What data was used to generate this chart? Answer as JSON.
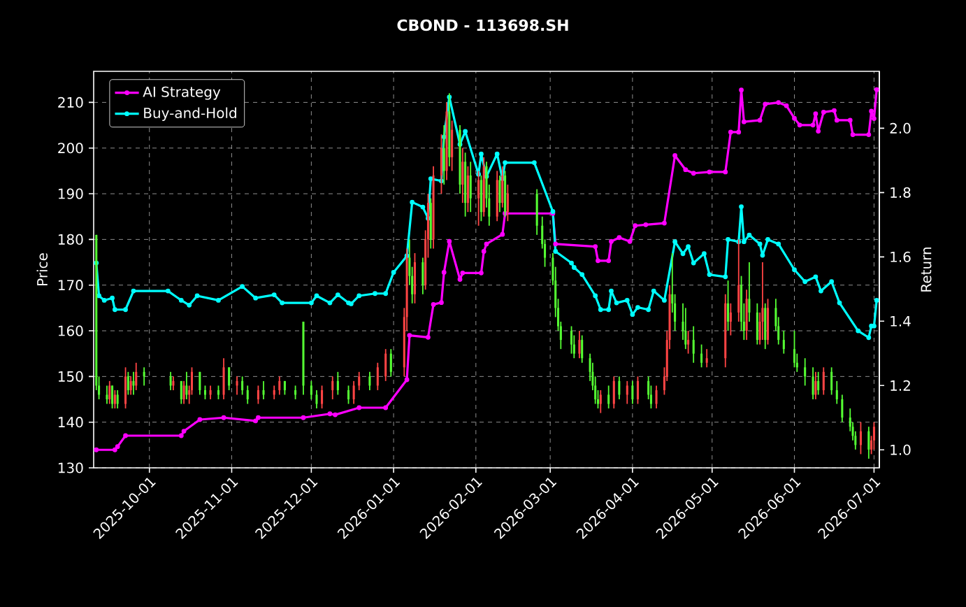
{
  "chart_data": {
    "type": "candlestick",
    "title": "CBOND - 113698.SH",
    "ylabel": "Price",
    "y2label": "Return",
    "xlim": [
      "2025-09-10",
      "2026-07-03"
    ],
    "xticks": [
      "2025-10-01",
      "2025-11-01",
      "2025-12-01",
      "2026-01-01",
      "2026-02-01",
      "2026-03-01",
      "2026-04-01",
      "2026-05-01",
      "2026-06-01",
      "2026-07-01"
    ],
    "ylim": [
      130,
      216.8
    ],
    "yticks": [
      130,
      140,
      150,
      160,
      170,
      180,
      190,
      200,
      210
    ],
    "y2lim": [
      0.944,
      2.177
    ],
    "y2ticks": [
      {
        "value": 1.0,
        "label": "1.0"
      },
      {
        "value": 1.2,
        "label": "1.2"
      },
      {
        "value": 1.4,
        "label": "1.4"
      },
      {
        "value": 1.6,
        "label": "1.6"
      },
      {
        "value": 1.8,
        "label": "1.8"
      },
      {
        "value": 2.0,
        "label": "2.0"
      }
    ],
    "grid": true,
    "legend": "top left",
    "x": [
      "2025-09-11",
      "2025-09-12",
      "2025-09-15",
      "2025-09-16",
      "2025-09-17",
      "2025-09-18",
      "2025-09-19",
      "2025-09-22",
      "2025-09-23",
      "2025-09-24",
      "2025-09-25",
      "2025-09-26",
      "2025-09-29",
      "2025-10-09",
      "2025-10-10",
      "2025-10-13",
      "2025-10-14",
      "2025-10-15",
      "2025-10-16",
      "2025-10-17",
      "2025-10-20",
      "2025-10-22",
      "2025-10-24",
      "2025-10-27",
      "2025-10-29",
      "2025-10-31",
      "2025-11-03",
      "2025-11-05",
      "2025-11-07",
      "2025-11-11",
      "2025-11-13",
      "2025-11-17",
      "2025-11-19",
      "2025-11-21",
      "2025-11-25",
      "2025-11-28",
      "2025-12-01",
      "2025-12-03",
      "2025-12-05",
      "2025-12-09",
      "2025-12-11",
      "2025-12-15",
      "2025-12-17",
      "2025-12-19",
      "2025-12-23",
      "2025-12-26",
      "2025-12-29",
      "2025-12-31",
      "2026-01-05",
      "2026-01-06",
      "2026-01-07",
      "2026-01-08",
      "2026-01-09",
      "2026-01-12",
      "2026-01-13",
      "2026-01-14",
      "2026-01-15",
      "2026-01-16",
      "2026-01-19",
      "2026-01-20",
      "2026-01-21",
      "2026-01-22",
      "2026-01-23",
      "2026-01-26",
      "2026-01-27",
      "2026-01-28",
      "2026-01-29",
      "2026-01-30",
      "2026-02-02",
      "2026-02-03",
      "2026-02-04",
      "2026-02-05",
      "2026-02-06",
      "2026-02-09",
      "2026-02-10",
      "2026-02-11",
      "2026-02-12",
      "2026-02-13",
      "2026-02-24",
      "2026-02-26",
      "2026-02-27",
      "2026-03-02",
      "2026-03-03",
      "2026-03-04",
      "2026-03-05",
      "2026-03-09",
      "2026-03-10",
      "2026-03-12",
      "2026-03-13",
      "2026-03-16",
      "2026-03-17",
      "2026-03-18",
      "2026-03-19",
      "2026-03-20",
      "2026-03-23",
      "2026-03-25",
      "2026-03-27",
      "2026-03-30",
      "2026-04-01",
      "2026-04-03",
      "2026-04-07",
      "2026-04-08",
      "2026-04-10",
      "2026-04-13",
      "2026-04-14",
      "2026-04-15",
      "2026-04-16",
      "2026-04-17",
      "2026-04-20",
      "2026-04-21",
      "2026-04-22",
      "2026-04-24",
      "2026-04-27",
      "2026-04-29",
      "2026-05-06",
      "2026-05-07",
      "2026-05-08",
      "2026-05-11",
      "2026-05-12",
      "2026-05-13",
      "2026-05-14",
      "2026-05-15",
      "2026-05-18",
      "2026-05-19",
      "2026-05-20",
      "2026-05-21",
      "2026-05-22",
      "2026-05-25",
      "2026-05-26",
      "2026-05-28",
      "2026-06-01",
      "2026-06-02",
      "2026-06-05",
      "2026-06-08",
      "2026-06-09",
      "2026-06-10",
      "2026-06-12",
      "2026-06-15",
      "2026-06-17",
      "2026-06-19",
      "2026-06-22",
      "2026-06-23",
      "2026-06-24",
      "2026-06-26",
      "2026-06-29",
      "2026-06-30",
      "2026-07-01"
    ],
    "ohlc": [
      [
        181,
        181,
        147,
        148
      ],
      [
        148,
        150,
        145,
        146
      ],
      [
        146,
        148,
        144,
        145
      ],
      [
        145,
        149,
        144,
        148
      ],
      [
        148,
        148,
        143,
        144
      ],
      [
        144,
        147,
        143,
        146
      ],
      [
        146,
        147,
        143,
        144
      ],
      [
        144,
        152,
        143,
        150
      ],
      [
        150,
        151,
        146,
        147
      ],
      [
        147,
        150,
        146,
        149
      ],
      [
        149,
        151,
        146,
        148
      ],
      [
        148,
        153,
        147,
        151
      ],
      [
        151,
        152,
        148,
        150
      ],
      [
        150,
        151,
        147,
        148
      ],
      [
        148,
        150,
        147,
        149
      ],
      [
        149,
        149,
        144,
        145
      ],
      [
        145,
        149,
        144,
        148
      ],
      [
        148,
        151,
        145,
        146
      ],
      [
        146,
        148,
        144,
        147
      ],
      [
        147,
        152,
        146,
        151
      ],
      [
        151,
        151,
        146,
        147
      ],
      [
        147,
        148,
        145,
        146
      ],
      [
        146,
        148,
        145,
        147
      ],
      [
        147,
        148,
        145,
        146
      ],
      [
        146,
        154,
        145,
        152
      ],
      [
        152,
        152,
        147,
        148
      ],
      [
        148,
        150,
        146,
        149
      ],
      [
        149,
        150,
        146,
        147
      ],
      [
        147,
        148,
        144,
        145
      ],
      [
        145,
        148,
        144,
        147
      ],
      [
        147,
        149,
        145,
        146
      ],
      [
        146,
        148,
        145,
        147
      ],
      [
        147,
        150,
        146,
        149
      ],
      [
        149,
        149,
        146,
        147
      ],
      [
        147,
        148,
        145,
        146
      ],
      [
        162,
        162,
        146,
        148
      ],
      [
        148,
        149,
        145,
        146
      ],
      [
        146,
        147,
        143,
        144
      ],
      [
        144,
        148,
        143,
        147
      ],
      [
        147,
        150,
        145,
        149
      ],
      [
        149,
        151,
        146,
        147
      ],
      [
        147,
        148,
        144,
        145
      ],
      [
        145,
        149,
        144,
        148
      ],
      [
        148,
        151,
        147,
        150
      ],
      [
        150,
        151,
        147,
        148
      ],
      [
        148,
        153,
        147,
        152
      ],
      [
        150,
        156,
        149,
        155
      ],
      [
        155,
        156,
        150,
        151
      ],
      [
        152,
        165,
        150,
        163
      ],
      [
        163,
        178,
        160,
        176
      ],
      [
        176,
        180,
        170,
        172
      ],
      [
        172,
        174,
        166,
        168
      ],
      [
        168,
        177,
        166,
        175
      ],
      [
        175,
        176,
        168,
        170
      ],
      [
        170,
        182,
        169,
        180
      ],
      [
        180,
        190,
        176,
        188
      ],
      [
        188,
        189,
        178,
        180
      ],
      [
        180,
        196,
        178,
        194
      ],
      [
        194,
        203,
        190,
        200
      ],
      [
        200,
        205,
        192,
        195
      ],
      [
        195,
        210,
        193,
        208
      ],
      [
        208,
        212,
        196,
        198
      ],
      [
        198,
        206,
        195,
        204
      ],
      [
        204,
        205,
        190,
        192
      ],
      [
        192,
        200,
        188,
        197
      ],
      [
        197,
        199,
        185,
        188
      ],
      [
        188,
        196,
        186,
        194
      ],
      [
        194,
        197,
        186,
        189
      ],
      [
        189,
        195,
        183,
        193
      ],
      [
        193,
        194,
        184,
        186
      ],
      [
        186,
        198,
        185,
        196
      ],
      [
        196,
        197,
        187,
        189
      ],
      [
        189,
        192,
        183,
        185
      ],
      [
        185,
        195,
        184,
        193
      ],
      [
        193,
        194,
        186,
        188
      ],
      [
        188,
        196,
        187,
        194
      ],
      [
        194,
        195,
        185,
        186
      ],
      [
        186,
        192,
        184,
        190
      ],
      [
        190,
        191,
        181,
        183
      ],
      [
        183,
        185,
        178,
        179
      ],
      [
        179,
        180,
        174,
        176
      ],
      [
        176,
        177,
        170,
        171
      ],
      [
        171,
        174,
        163,
        165
      ],
      [
        165,
        167,
        160,
        161
      ],
      [
        161,
        162,
        156,
        158
      ],
      [
        160,
        161,
        155,
        157
      ],
      [
        157,
        159,
        154,
        155
      ],
      [
        155,
        160,
        154,
        158
      ],
      [
        158,
        159,
        153,
        154
      ],
      [
        154,
        155,
        149,
        151
      ],
      [
        151,
        153,
        147,
        148
      ],
      [
        148,
        150,
        144,
        145
      ],
      [
        145,
        147,
        143,
        144
      ],
      [
        144,
        147,
        142,
        146
      ],
      [
        146,
        148,
        143,
        144
      ],
      [
        144,
        150,
        143,
        149
      ],
      [
        149,
        150,
        145,
        146
      ],
      [
        146,
        149,
        144,
        148
      ],
      [
        148,
        149,
        144,
        145
      ],
      [
        145,
        150,
        144,
        149
      ],
      [
        149,
        150,
        145,
        146
      ],
      [
        146,
        148,
        143,
        144
      ],
      [
        144,
        148,
        143,
        147
      ],
      [
        147,
        152,
        146,
        150
      ],
      [
        150,
        160,
        149,
        158
      ],
      [
        158,
        170,
        156,
        168
      ],
      [
        168,
        177,
        164,
        166
      ],
      [
        166,
        168,
        160,
        162
      ],
      [
        162,
        166,
        158,
        160
      ],
      [
        160,
        165,
        156,
        157
      ],
      [
        157,
        160,
        155,
        158
      ],
      [
        158,
        161,
        153,
        155
      ],
      [
        155,
        157,
        152,
        153
      ],
      [
        153,
        156,
        152,
        154
      ],
      [
        154,
        168,
        152,
        166
      ],
      [
        166,
        171,
        160,
        162
      ],
      [
        162,
        166,
        159,
        164
      ],
      [
        164,
        180,
        162,
        170
      ],
      [
        170,
        172,
        160,
        162
      ],
      [
        162,
        166,
        158,
        160
      ],
      [
        160,
        169,
        158,
        167
      ],
      [
        167,
        175,
        162,
        164
      ],
      [
        164,
        166,
        157,
        158
      ],
      [
        158,
        164,
        157,
        162
      ],
      [
        162,
        175,
        158,
        165
      ],
      [
        165,
        166,
        156,
        158
      ],
      [
        158,
        167,
        157,
        165
      ],
      [
        165,
        167,
        160,
        161
      ],
      [
        161,
        163,
        157,
        158
      ],
      [
        158,
        160,
        155,
        156
      ],
      [
        156,
        160,
        152,
        153
      ],
      [
        153,
        155,
        151,
        152
      ],
      [
        152,
        154,
        148,
        150
      ],
      [
        150,
        152,
        145,
        146
      ],
      [
        146,
        151,
        145,
        149
      ],
      [
        149,
        151,
        146,
        147
      ],
      [
        147,
        152,
        146,
        151
      ],
      [
        151,
        152,
        146,
        147
      ],
      [
        147,
        149,
        144,
        145
      ],
      [
        145,
        146,
        140,
        141
      ],
      [
        141,
        143,
        138,
        139
      ],
      [
        139,
        140,
        136,
        137
      ],
      [
        137,
        138,
        134,
        135
      ],
      [
        135,
        140,
        133,
        138
      ],
      [
        138,
        139,
        132,
        134
      ],
      [
        134,
        137,
        133,
        136
      ],
      [
        136,
        140,
        134,
        139
      ]
    ],
    "series": [
      {
        "name": "AI Strategy",
        "type": "line",
        "axis": "y2",
        "color": "#ff00ff",
        "marker": "circle",
        "x": [
          "2025-09-11",
          "2025-09-18",
          "2025-09-19",
          "2025-09-22",
          "2025-10-13",
          "2025-10-14",
          "2025-10-20",
          "2025-10-29",
          "2025-11-10",
          "2025-11-11",
          "2025-11-28",
          "2025-12-08",
          "2025-12-10",
          "2025-12-19",
          "2025-12-29",
          "2026-01-06",
          "2026-01-07",
          "2026-01-14",
          "2026-01-16",
          "2026-01-19",
          "2026-01-20",
          "2026-01-22",
          "2026-01-26",
          "2026-01-27",
          "2026-02-03",
          "2026-02-04",
          "2026-02-05",
          "2026-02-11",
          "2026-02-12",
          "2026-03-02",
          "2026-03-03",
          "2026-03-18",
          "2026-03-19",
          "2026-03-23",
          "2026-03-24",
          "2026-03-27",
          "2026-03-31",
          "2026-04-02",
          "2026-04-06",
          "2026-04-13",
          "2026-04-17",
          "2026-04-21",
          "2026-04-24",
          "2026-04-30",
          "2026-05-06",
          "2026-05-08",
          "2026-05-11",
          "2026-05-12",
          "2026-05-13",
          "2026-05-19",
          "2026-05-21",
          "2026-05-26",
          "2026-05-29",
          "2026-06-01",
          "2026-06-03",
          "2026-06-08",
          "2026-06-09",
          "2026-06-10",
          "2026-06-12",
          "2026-06-16",
          "2026-06-17",
          "2026-06-22",
          "2026-06-23",
          "2026-06-29",
          "2026-06-30",
          "2026-07-01",
          "2026-07-02"
        ],
        "values": [
          1.0,
          1.0,
          1.01,
          1.044,
          1.044,
          1.058,
          1.094,
          1.1,
          1.09,
          1.1,
          1.1,
          1.112,
          1.109,
          1.131,
          1.131,
          1.218,
          1.356,
          1.35,
          1.452,
          1.458,
          1.552,
          1.648,
          1.53,
          1.55,
          1.55,
          1.617,
          1.64,
          1.67,
          1.735,
          1.735,
          1.64,
          1.632,
          1.588,
          1.588,
          1.648,
          1.66,
          1.648,
          1.697,
          1.7,
          1.705,
          1.915,
          1.871,
          1.86,
          1.864,
          1.864,
          1.988,
          1.988,
          2.119,
          2.02,
          2.025,
          2.075,
          2.08,
          2.07,
          2.031,
          2.01,
          2.01,
          2.045,
          1.991,
          2.05,
          2.055,
          2.025,
          2.025,
          1.98,
          1.98,
          2.053,
          2.03,
          2.12
        ]
      },
      {
        "name": "Buy-and-Hold",
        "type": "line",
        "axis": "y2",
        "color": "#00ffff",
        "marker": "circle",
        "x": [
          "2025-09-11",
          "2025-09-12",
          "2025-09-14",
          "2025-09-17",
          "2025-09-18",
          "2025-09-22",
          "2025-09-25",
          "2025-10-08",
          "2025-10-13",
          "2025-10-16",
          "2025-10-19",
          "2025-10-27",
          "2025-11-05",
          "2025-11-10",
          "2025-11-17",
          "2025-11-20",
          "2025-12-01",
          "2025-12-03",
          "2025-12-08",
          "2025-12-11",
          "2025-12-15",
          "2025-12-16",
          "2025-12-19",
          "2025-12-25",
          "2025-12-29",
          "2026-01-01",
          "2026-01-06",
          "2026-01-08",
          "2026-01-12",
          "2026-01-14",
          "2026-01-15",
          "2026-01-19",
          "2026-01-20",
          "2026-01-22",
          "2026-01-26",
          "2026-01-28",
          "2026-02-02",
          "2026-02-03",
          "2026-02-05",
          "2026-02-09",
          "2026-02-11",
          "2026-02-12",
          "2026-02-23",
          "2026-03-02",
          "2026-03-03",
          "2026-03-09",
          "2026-03-10",
          "2026-03-13",
          "2026-03-18",
          "2026-03-20",
          "2026-03-23",
          "2026-03-24",
          "2026-03-26",
          "2026-03-30",
          "2026-04-01",
          "2026-04-03",
          "2026-04-07",
          "2026-04-09",
          "2026-04-13",
          "2026-04-17",
          "2026-04-20",
          "2026-04-22",
          "2026-04-24",
          "2026-04-28",
          "2026-04-30",
          "2026-05-06",
          "2026-05-07",
          "2026-05-11",
          "2026-05-12",
          "2026-05-13",
          "2026-05-15",
          "2026-05-19",
          "2026-05-20",
          "2026-05-22",
          "2026-05-26",
          "2026-06-01",
          "2026-06-05",
          "2026-06-09",
          "2026-06-11",
          "2026-06-15",
          "2026-06-18",
          "2026-06-25",
          "2026-06-29",
          "2026-06-30",
          "2026-07-01",
          "2026-07-02"
        ],
        "values": [
          1.581,
          1.479,
          1.465,
          1.472,
          1.436,
          1.436,
          1.494,
          1.494,
          1.465,
          1.45,
          1.479,
          1.465,
          1.508,
          1.472,
          1.482,
          1.457,
          1.457,
          1.479,
          1.457,
          1.482,
          1.457,
          1.454,
          1.479,
          1.486,
          1.486,
          1.552,
          1.603,
          1.77,
          1.755,
          1.72,
          1.843,
          1.836,
          1.973,
          2.097,
          1.95,
          1.99,
          1.857,
          1.92,
          1.85,
          1.92,
          1.843,
          1.893,
          1.893,
          1.741,
          1.617,
          1.581,
          1.567,
          1.545,
          1.479,
          1.436,
          1.436,
          1.494,
          1.457,
          1.465,
          1.421,
          1.443,
          1.436,
          1.494,
          1.465,
          1.647,
          1.61,
          1.632,
          1.581,
          1.61,
          1.545,
          1.538,
          1.654,
          1.647,
          1.756,
          1.647,
          1.668,
          1.64,
          1.605,
          1.654,
          1.64,
          1.56,
          1.523,
          1.538,
          1.494,
          1.523,
          1.457,
          1.37,
          1.349,
          1.385,
          1.385,
          1.465
        ]
      }
    ]
  }
}
